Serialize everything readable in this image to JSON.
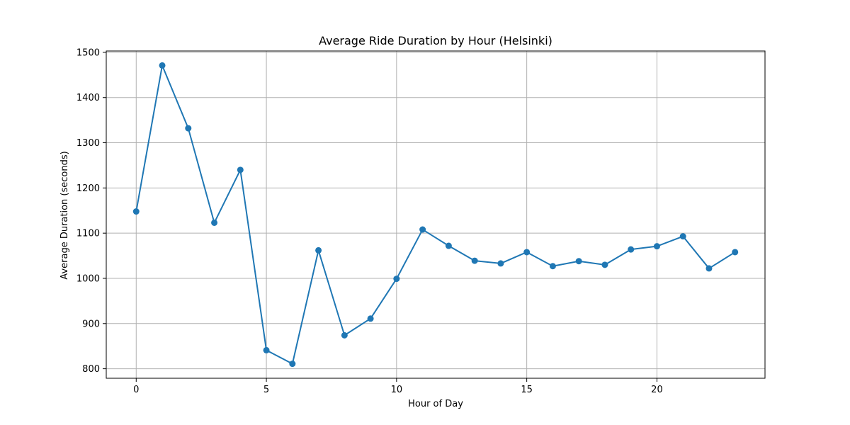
{
  "chart_data": {
    "type": "line",
    "title": "Average Ride Duration by Hour (Helsinki)",
    "xlabel": "Hour of Day",
    "ylabel": "Average Duration (seconds)",
    "x": [
      0,
      1,
      2,
      3,
      4,
      5,
      6,
      7,
      8,
      9,
      10,
      11,
      12,
      13,
      14,
      15,
      16,
      17,
      18,
      19,
      20,
      21,
      22,
      23
    ],
    "series": [
      {
        "values": [
          1148,
          1471,
          1332,
          1123,
          1240,
          841,
          811,
          1062,
          874,
          911,
          999,
          1108,
          1072,
          1039,
          1033,
          1058,
          1027,
          1038,
          1030,
          1064,
          1071,
          1093,
          1022,
          1058
        ],
        "color": "#1f77b4",
        "marker": "circle"
      }
    ],
    "xlim": [
      -1.15,
      24.15
    ],
    "ylim": [
      779,
      1503
    ],
    "xticks": [
      0,
      5,
      10,
      15,
      20
    ],
    "yticks": [
      800,
      900,
      1000,
      1100,
      1200,
      1300,
      1400,
      1500
    ],
    "grid": true,
    "legend": "none"
  }
}
